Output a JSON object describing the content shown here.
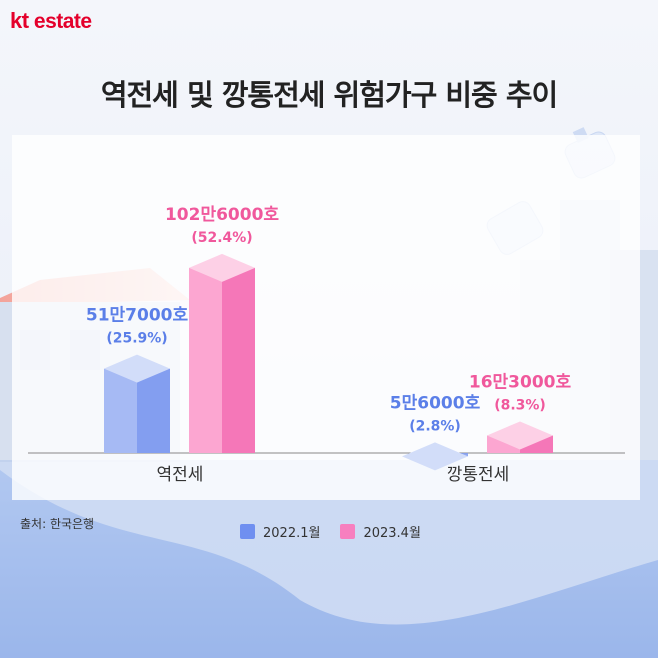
{
  "brand": {
    "logo_kt": "kt",
    "logo_estate": "estate"
  },
  "title": "역전세 및 깡통전세 위험가구 비중 추이",
  "source": "출처: 한국은행",
  "colors": {
    "series1": "#6f8ff0",
    "series2": "#f77fbf",
    "label1": "#5b7fe8",
    "label2": "#f0589c"
  },
  "chart_data": {
    "type": "bar",
    "title": "역전세 및 깡통전세 위험가구 비중 추이",
    "categories": [
      "역전세",
      "깡통전세"
    ],
    "series": [
      {
        "name": "2022.1월",
        "values": [
          25.9,
          2.8
        ],
        "counts": [
          "51만7000호",
          "5만6000호"
        ],
        "pct_labels": [
          "(25.9%)",
          "(2.8%)"
        ]
      },
      {
        "name": "2023.4월",
        "values": [
          52.4,
          8.3
        ],
        "counts": [
          "102만6000호",
          "16만3000호"
        ],
        "pct_labels": [
          "(52.4%)",
          "(8.3%)"
        ]
      }
    ],
    "unit": "%",
    "ylim": [
      0,
      60
    ],
    "grid": false,
    "legend_position": "bottom"
  }
}
